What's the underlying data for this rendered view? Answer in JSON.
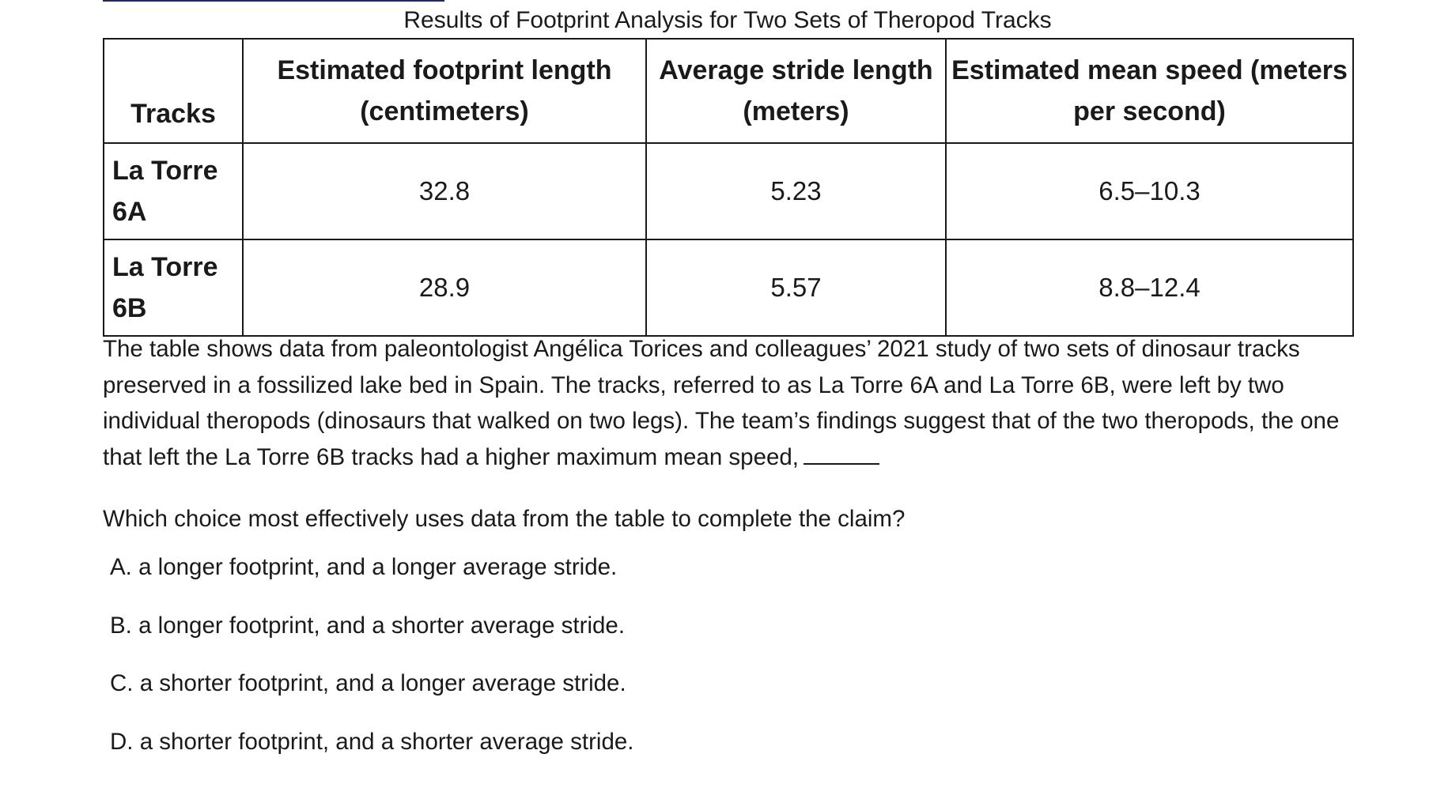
{
  "table": {
    "caption": "Results of Footprint Analysis for Two Sets of Theropod Tracks",
    "headers": [
      "Tracks",
      "Estimated footprint length (centimeters)",
      "Average stride length (meters)",
      "Estimated mean speed (meters per second)"
    ],
    "rows": [
      {
        "track": "La Torre 6A",
        "footprint": "32.8",
        "stride": "5.23",
        "speed": "6.5–10.3"
      },
      {
        "track": "La Torre 6B",
        "footprint": "28.9",
        "stride": "5.57",
        "speed": "8.8–12.4"
      }
    ]
  },
  "passage": "The table shows data from paleontologist Angélica Torices and colleagues’ 2021 study of two sets of dinosaur tracks preserved in a fossilized lake bed in Spain. The tracks, referred to as La Torre 6A and La Torre 6B, were left by two individual theropods (dinosaurs that walked on two legs). The team’s findings suggest that of the two theropods, the one that left the La Torre 6B tracks had a higher maximum mean speed,",
  "question": "Which choice most effectively uses data from the table to complete the claim?",
  "choices": [
    "A. a longer footprint, and a longer average stride.",
    "B. a longer footprint, and a shorter average stride.",
    "C. a shorter footprint, and a longer average stride.",
    "D. a shorter footprint, and a shorter average stride."
  ]
}
